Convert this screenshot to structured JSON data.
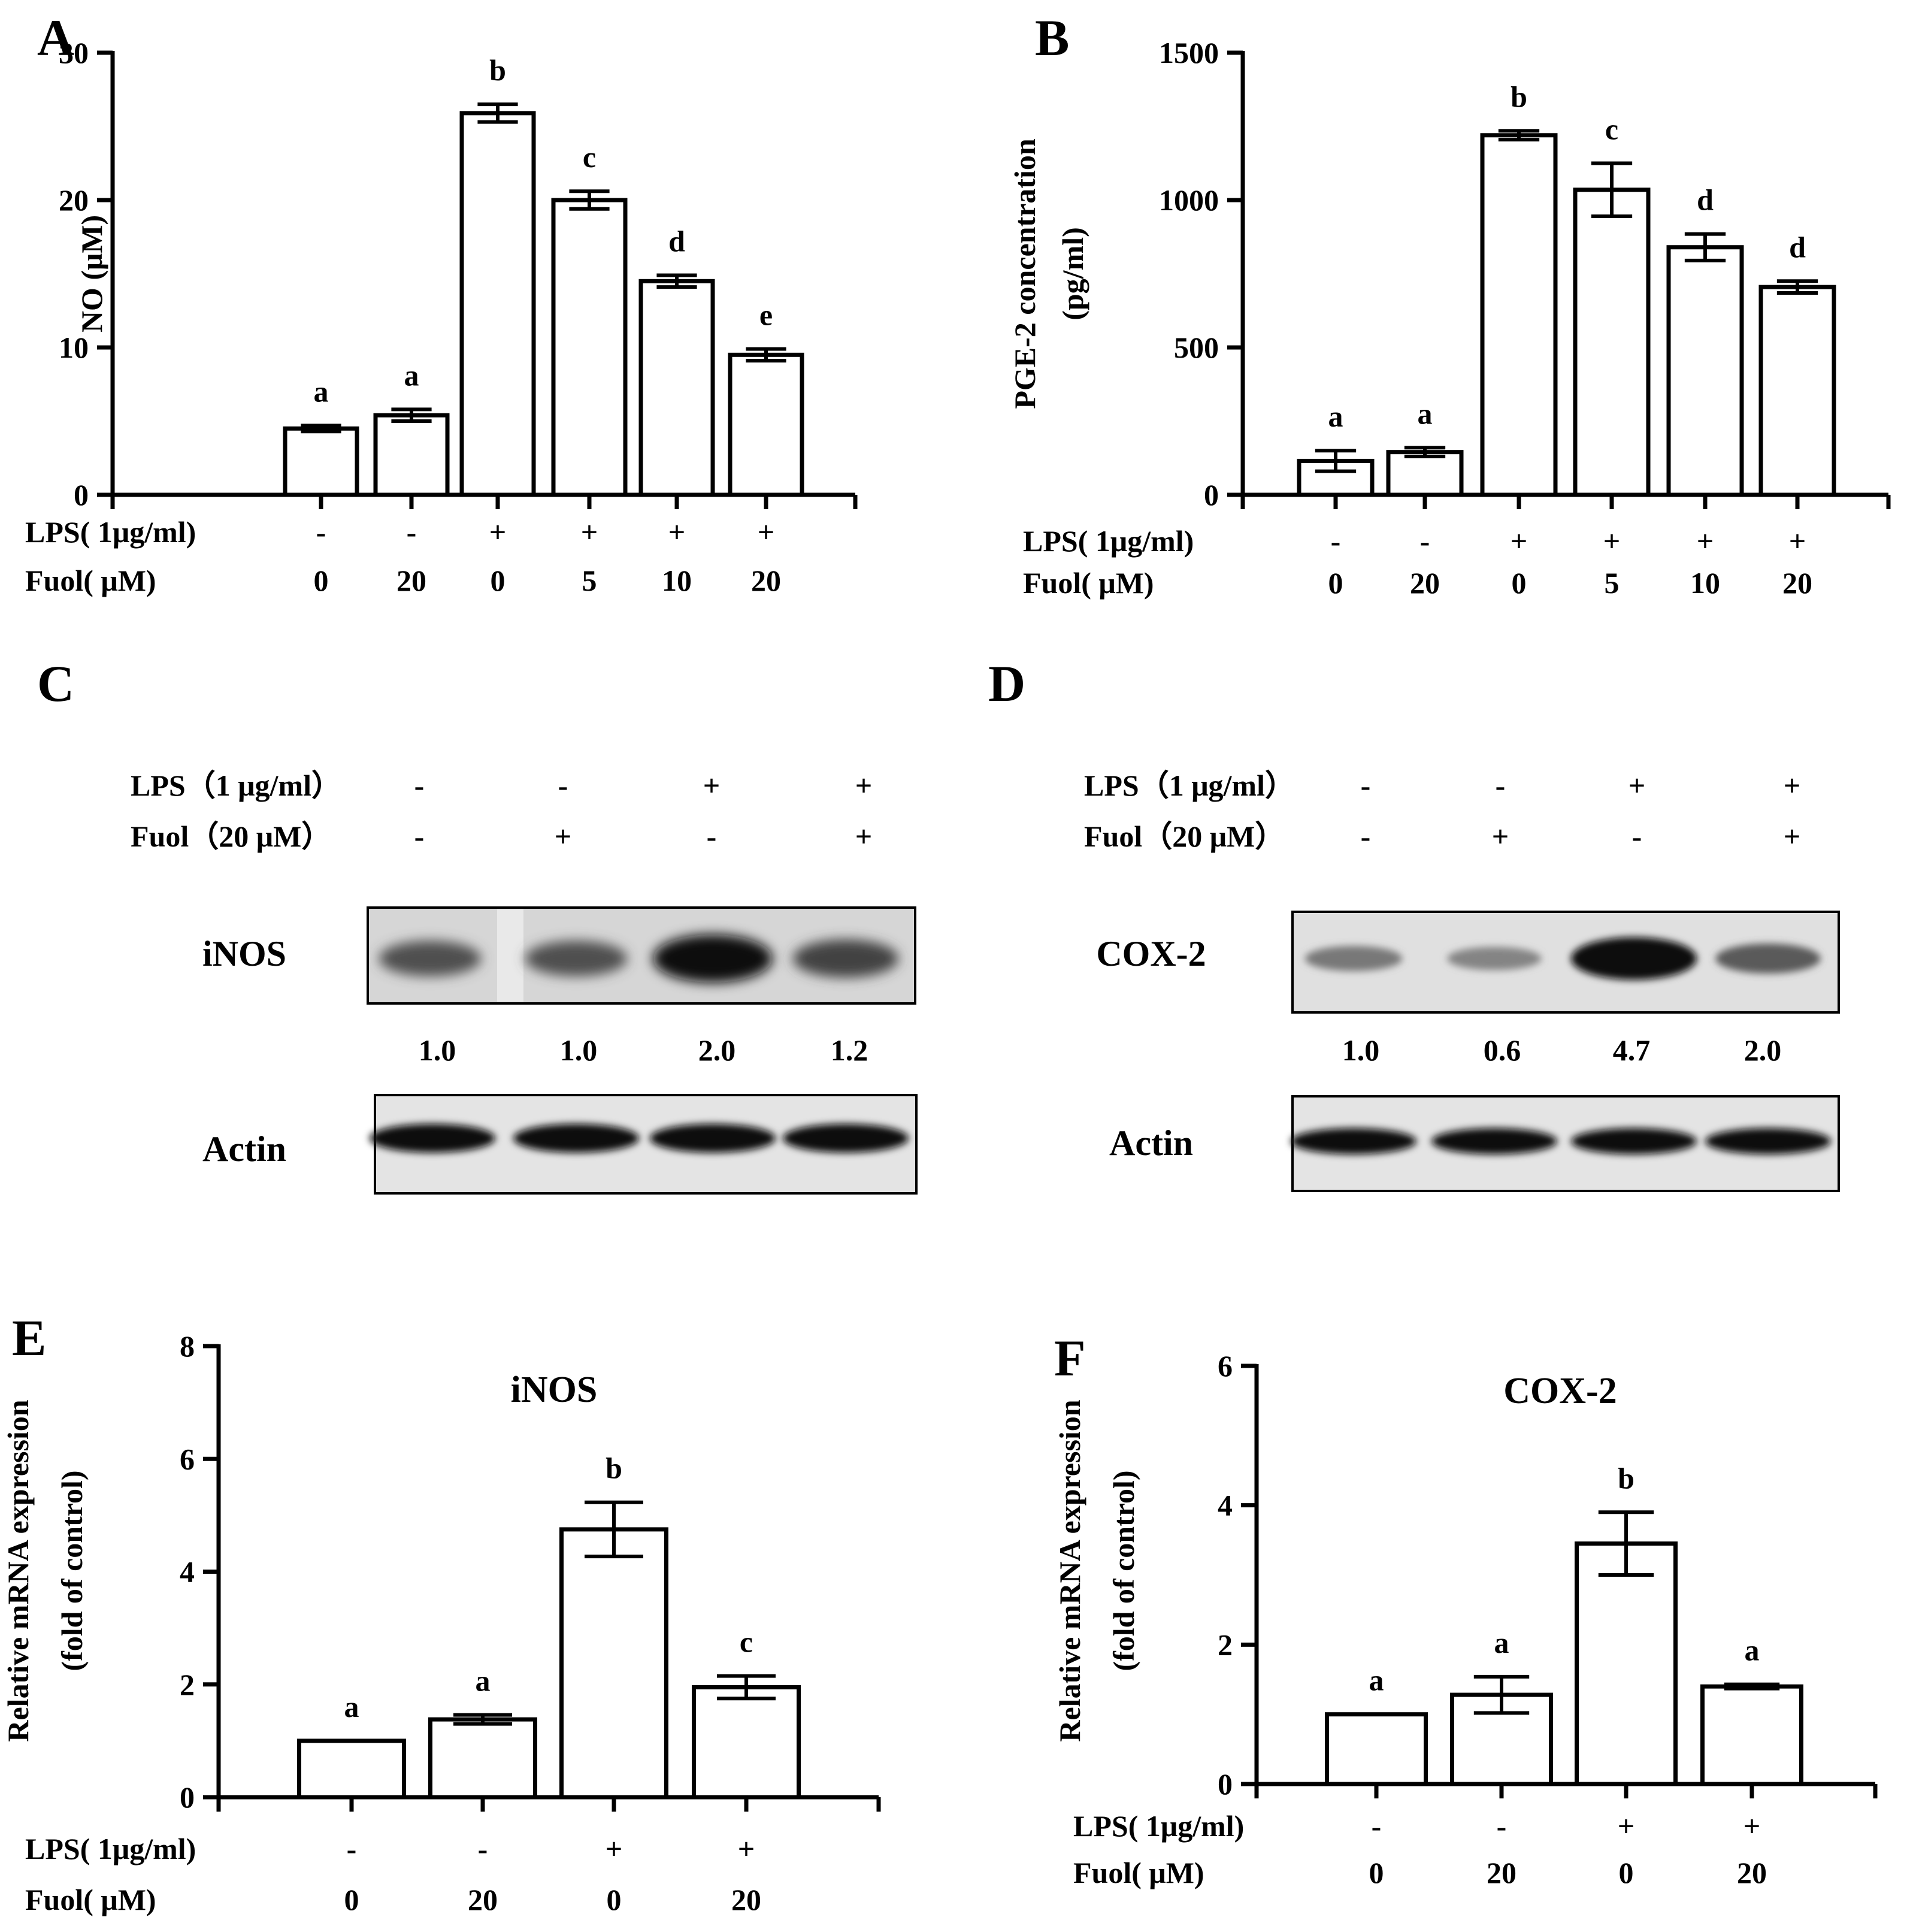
{
  "panels": {
    "A": "A",
    "B": "B",
    "C": "C",
    "D": "D",
    "E": "E",
    "F": "F"
  },
  "chart_data": [
    {
      "panel": "A",
      "type": "bar",
      "ylabel": "NO (μM)",
      "ylim": [
        0,
        30
      ],
      "yticks": [
        "0",
        "10",
        "20",
        "30"
      ],
      "row_labels": [
        "LPS( 1μg/ml)",
        "Fuol( μM)"
      ],
      "lps": [
        "-",
        "-",
        "+",
        "+",
        "+",
        "+"
      ],
      "fuol": [
        "0",
        "20",
        "0",
        "5",
        "10",
        "20"
      ],
      "values": [
        4.5,
        5.4,
        25.9,
        20.0,
        14.5,
        9.5
      ],
      "errors": [
        0.2,
        0.4,
        0.6,
        0.6,
        0.4,
        0.4
      ],
      "sig": [
        "a",
        "a",
        "b",
        "c",
        "d",
        "e"
      ]
    },
    {
      "panel": "B",
      "type": "bar",
      "ylabel": "PGE-2 concentration (pg/ml)",
      "ylabel_lines": [
        "PGE-2 concentration",
        "(pg/ml)"
      ],
      "ylim": [
        0,
        1500
      ],
      "yticks": [
        "0",
        "500",
        "1000",
        "1500"
      ],
      "row_labels": [
        "LPS( 1μg/ml)",
        "Fuol( μM)"
      ],
      "lps": [
        "-",
        "-",
        "+",
        "+",
        "+",
        "+"
      ],
      "fuol": [
        "0",
        "20",
        "0",
        "5",
        "10",
        "20"
      ],
      "values": [
        115,
        145,
        1220,
        1035,
        840,
        705
      ],
      "errors": [
        35,
        15,
        15,
        90,
        45,
        20
      ],
      "sig": [
        "a",
        "a",
        "b",
        "c",
        "d",
        "d"
      ]
    },
    {
      "panel": "E",
      "type": "bar",
      "title": "iNOS",
      "ylabel": "Relative mRNA expression (fold of control)",
      "ylabel_lines": [
        "Relative mRNA expression",
        "(fold of control)"
      ],
      "ylim": [
        0,
        8
      ],
      "yticks": [
        "0",
        "2",
        "4",
        "6",
        "8"
      ],
      "row_labels": [
        "LPS( 1μg/ml)",
        "Fuol( μM)"
      ],
      "lps": [
        "-",
        "-",
        "+",
        "+"
      ],
      "fuol": [
        "0",
        "20",
        "0",
        "20"
      ],
      "values": [
        1.0,
        1.38,
        4.75,
        1.95
      ],
      "errors": [
        0,
        0.08,
        0.48,
        0.2
      ],
      "sig": [
        "a",
        "a",
        "b",
        "c"
      ]
    },
    {
      "panel": "F",
      "type": "bar",
      "title": "COX-2",
      "ylabel": "Relative mRNA expression (fold of control)",
      "ylabel_lines": [
        "Relative mRNA expression",
        "(fold of control)"
      ],
      "ylim": [
        0,
        6
      ],
      "yticks": [
        "0",
        "2",
        "4",
        "6"
      ],
      "row_labels": [
        "LPS( 1μg/ml)",
        "Fuol( μM)"
      ],
      "lps": [
        "-",
        "-",
        "+",
        "+"
      ],
      "fuol": [
        "0",
        "20",
        "0",
        "20"
      ],
      "values": [
        1.0,
        1.28,
        3.45,
        1.4
      ],
      "errors": [
        0,
        0.26,
        0.45,
        0.03
      ],
      "sig": [
        "a",
        "a",
        "b",
        "a"
      ]
    }
  ],
  "blots": {
    "C": {
      "row_labels": [
        "LPS（1 μg/ml）",
        "Fuol（20 μM）"
      ],
      "lps": [
        "-",
        "-",
        "+",
        "+"
      ],
      "fuol": [
        "-",
        "+",
        "-",
        "+"
      ],
      "target_label": "iNOS",
      "control_label": "Actin",
      "quant": [
        "1.0",
        "1.0",
        "2.0",
        "1.2"
      ],
      "intensity": [
        1.0,
        1.0,
        2.0,
        1.2
      ]
    },
    "D": {
      "row_labels": [
        "LPS（1 μg/ml）",
        "Fuol（20 μM）"
      ],
      "lps": [
        "-",
        "-",
        "+",
        "+"
      ],
      "fuol": [
        "-",
        "+",
        "-",
        "+"
      ],
      "target_label": "COX-2",
      "control_label": "Actin",
      "quant": [
        "1.0",
        "0.6",
        "4.7",
        "2.0"
      ],
      "intensity": [
        1.0,
        0.6,
        4.7,
        2.0
      ]
    }
  }
}
